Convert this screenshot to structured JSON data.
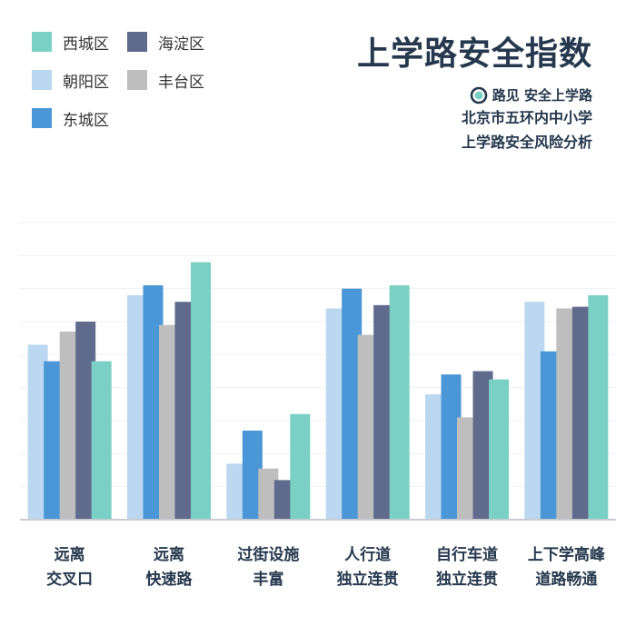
{
  "title": "上学路安全指数",
  "brand": {
    "name": "路见 安全上学路",
    "icon": "road-seeing-logo"
  },
  "subtitle_lines": [
    "北京市五环内中小学",
    "上学路安全风险分析"
  ],
  "legend": [
    {
      "name": "西城区",
      "color": "#7ad0c4"
    },
    {
      "name": "海淀区",
      "color": "#5f6a8c"
    },
    {
      "name": "朝阳区",
      "color": "#bcd7f0"
    },
    {
      "name": "丰台区",
      "color": "#bebebe"
    },
    {
      "name": "东城区",
      "color": "#4a96d6"
    }
  ],
  "chart_data": {
    "type": "bar",
    "title": "上学路安全指数",
    "categories": [
      [
        "远离",
        "交叉口"
      ],
      [
        "远离",
        "快速路"
      ],
      [
        "过街设施",
        "丰富"
      ],
      [
        "人行道",
        "独立连贯"
      ],
      [
        "自行车道",
        "独立连贯"
      ],
      [
        "上下学高峰",
        "道路畅通"
      ]
    ],
    "ylim": [
      0,
      9
    ],
    "grid": true,
    "legend_position": "top-left",
    "series": [
      {
        "name": "朝阳区",
        "color": "#bcd7f0",
        "values": [
          5.3,
          6.8,
          1.7,
          6.4,
          3.8,
          6.6
        ]
      },
      {
        "name": "东城区",
        "color": "#4a96d6",
        "values": [
          4.8,
          7.1,
          2.7,
          7.0,
          4.4,
          5.1
        ]
      },
      {
        "name": "丰台区",
        "color": "#bebebe",
        "values": [
          5.7,
          5.9,
          1.55,
          5.6,
          3.1,
          6.4
        ]
      },
      {
        "name": "海淀区",
        "color": "#5f6a8c",
        "values": [
          6.0,
          6.6,
          1.2,
          6.5,
          4.5,
          6.45
        ]
      },
      {
        "name": "西城区",
        "color": "#7ad0c4",
        "values": [
          4.8,
          7.8,
          3.2,
          7.1,
          4.25,
          6.8
        ]
      }
    ]
  }
}
